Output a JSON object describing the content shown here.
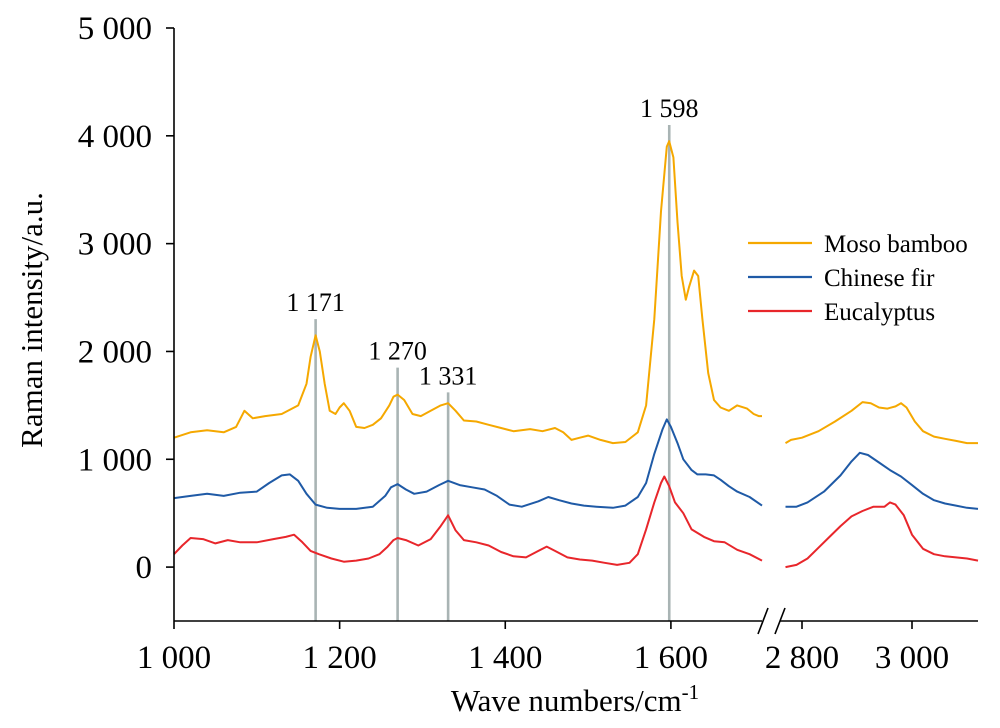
{
  "chart_data": {
    "type": "line",
    "xlabel": "Wave numbers/cm",
    "xlabel_sup": "-1",
    "ylabel": "Raman intensity/a.u.",
    "ylim": [
      -500,
      5000
    ],
    "yticks": [
      {
        "value": 0,
        "label": "0"
      },
      {
        "value": 1000,
        "label": "1 000"
      },
      {
        "value": 2000,
        "label": "2 000"
      },
      {
        "value": 3000,
        "label": "3 000"
      },
      {
        "value": 4000,
        "label": "4 000"
      },
      {
        "value": 5000,
        "label": "5 000"
      }
    ],
    "x_axis_broken": true,
    "x_segments": [
      {
        "range": [
          1000,
          1710
        ],
        "ticks": [
          {
            "value": 1000,
            "label": "1 000"
          },
          {
            "value": 1200,
            "label": "1 200"
          },
          {
            "value": 1400,
            "label": "1 400"
          },
          {
            "value": 1600,
            "label": "1 600"
          }
        ]
      },
      {
        "range": [
          2760,
          3120
        ],
        "ticks": [
          {
            "value": 2800,
            "label": "2 800"
          },
          {
            "value": 3000,
            "label": "3 000"
          }
        ]
      }
    ],
    "peak_markers": [
      {
        "x": 1171,
        "label": "1 171",
        "top": 2300
      },
      {
        "x": 1270,
        "label": "1 270",
        "top": 1850
      },
      {
        "x": 1331,
        "label": "1 331",
        "top": 1620
      },
      {
        "x": 1598,
        "label": "1 598",
        "top": 4100
      }
    ],
    "legend_position": "right",
    "series": [
      {
        "name": "Moso bamboo",
        "color": "#f5a800",
        "points": [
          [
            1000,
            1200
          ],
          [
            1020,
            1250
          ],
          [
            1040,
            1270
          ],
          [
            1060,
            1250
          ],
          [
            1075,
            1300
          ],
          [
            1085,
            1450
          ],
          [
            1095,
            1380
          ],
          [
            1110,
            1400
          ],
          [
            1130,
            1420
          ],
          [
            1150,
            1500
          ],
          [
            1160,
            1700
          ],
          [
            1165,
            1950
          ],
          [
            1171,
            2150
          ],
          [
            1176,
            2000
          ],
          [
            1182,
            1700
          ],
          [
            1188,
            1450
          ],
          [
            1195,
            1420
          ],
          [
            1200,
            1480
          ],
          [
            1205,
            1520
          ],
          [
            1212,
            1450
          ],
          [
            1220,
            1300
          ],
          [
            1230,
            1290
          ],
          [
            1240,
            1320
          ],
          [
            1250,
            1380
          ],
          [
            1260,
            1500
          ],
          [
            1265,
            1580
          ],
          [
            1270,
            1600
          ],
          [
            1278,
            1550
          ],
          [
            1288,
            1420
          ],
          [
            1298,
            1400
          ],
          [
            1310,
            1450
          ],
          [
            1322,
            1500
          ],
          [
            1331,
            1520
          ],
          [
            1340,
            1450
          ],
          [
            1350,
            1360
          ],
          [
            1365,
            1350
          ],
          [
            1380,
            1320
          ],
          [
            1395,
            1290
          ],
          [
            1410,
            1260
          ],
          [
            1430,
            1280
          ],
          [
            1445,
            1260
          ],
          [
            1460,
            1290
          ],
          [
            1470,
            1250
          ],
          [
            1480,
            1180
          ],
          [
            1490,
            1200
          ],
          [
            1500,
            1220
          ],
          [
            1515,
            1180
          ],
          [
            1530,
            1150
          ],
          [
            1545,
            1160
          ],
          [
            1560,
            1250
          ],
          [
            1570,
            1500
          ],
          [
            1580,
            2300
          ],
          [
            1588,
            3300
          ],
          [
            1595,
            3900
          ],
          [
            1598,
            3950
          ],
          [
            1603,
            3800
          ],
          [
            1608,
            3200
          ],
          [
            1613,
            2700
          ],
          [
            1618,
            2480
          ],
          [
            1622,
            2600
          ],
          [
            1628,
            2750
          ],
          [
            1633,
            2700
          ],
          [
            1638,
            2300
          ],
          [
            1645,
            1800
          ],
          [
            1652,
            1550
          ],
          [
            1660,
            1480
          ],
          [
            1670,
            1450
          ],
          [
            1680,
            1500
          ],
          [
            1692,
            1470
          ],
          [
            1700,
            1420
          ],
          [
            1706,
            1400
          ],
          [
            1710,
            1400
          ],
          null,
          [
            2770,
            1150
          ],
          [
            2780,
            1180
          ],
          [
            2800,
            1200
          ],
          [
            2830,
            1260
          ],
          [
            2860,
            1350
          ],
          [
            2890,
            1450
          ],
          [
            2910,
            1530
          ],
          [
            2925,
            1520
          ],
          [
            2940,
            1480
          ],
          [
            2955,
            1470
          ],
          [
            2970,
            1490
          ],
          [
            2980,
            1520
          ],
          [
            2990,
            1480
          ],
          [
            3005,
            1350
          ],
          [
            3020,
            1260
          ],
          [
            3040,
            1210
          ],
          [
            3060,
            1190
          ],
          [
            3080,
            1170
          ],
          [
            3100,
            1150
          ],
          [
            3120,
            1150
          ]
        ]
      },
      {
        "name": "Chinese fir",
        "color": "#1f5aa6",
        "points": [
          [
            1000,
            640
          ],
          [
            1020,
            660
          ],
          [
            1040,
            680
          ],
          [
            1060,
            660
          ],
          [
            1080,
            690
          ],
          [
            1100,
            700
          ],
          [
            1115,
            780
          ],
          [
            1130,
            850
          ],
          [
            1140,
            860
          ],
          [
            1150,
            800
          ],
          [
            1160,
            680
          ],
          [
            1171,
            580
          ],
          [
            1185,
            550
          ],
          [
            1200,
            540
          ],
          [
            1220,
            540
          ],
          [
            1240,
            560
          ],
          [
            1255,
            660
          ],
          [
            1262,
            740
          ],
          [
            1270,
            770
          ],
          [
            1280,
            720
          ],
          [
            1290,
            680
          ],
          [
            1305,
            700
          ],
          [
            1320,
            760
          ],
          [
            1331,
            800
          ],
          [
            1345,
            760
          ],
          [
            1360,
            740
          ],
          [
            1375,
            720
          ],
          [
            1390,
            660
          ],
          [
            1405,
            580
          ],
          [
            1420,
            560
          ],
          [
            1440,
            610
          ],
          [
            1452,
            650
          ],
          [
            1465,
            620
          ],
          [
            1480,
            590
          ],
          [
            1495,
            570
          ],
          [
            1510,
            560
          ],
          [
            1530,
            550
          ],
          [
            1545,
            570
          ],
          [
            1560,
            650
          ],
          [
            1570,
            780
          ],
          [
            1580,
            1050
          ],
          [
            1590,
            1280
          ],
          [
            1595,
            1370
          ],
          [
            1600,
            1300
          ],
          [
            1608,
            1150
          ],
          [
            1615,
            1000
          ],
          [
            1625,
            900
          ],
          [
            1632,
            860
          ],
          [
            1642,
            860
          ],
          [
            1652,
            850
          ],
          [
            1660,
            810
          ],
          [
            1670,
            750
          ],
          [
            1680,
            700
          ],
          [
            1695,
            650
          ],
          [
            1710,
            570
          ],
          null,
          [
            2770,
            560
          ],
          [
            2790,
            560
          ],
          [
            2810,
            600
          ],
          [
            2840,
            700
          ],
          [
            2870,
            850
          ],
          [
            2890,
            980
          ],
          [
            2905,
            1060
          ],
          [
            2920,
            1040
          ],
          [
            2940,
            970
          ],
          [
            2960,
            900
          ],
          [
            2980,
            840
          ],
          [
            3000,
            760
          ],
          [
            3020,
            680
          ],
          [
            3040,
            620
          ],
          [
            3060,
            590
          ],
          [
            3080,
            570
          ],
          [
            3100,
            550
          ],
          [
            3120,
            540
          ]
        ]
      },
      {
        "name": "Eucalyptus",
        "color": "#e8262b",
        "points": [
          [
            1000,
            120
          ],
          [
            1010,
            200
          ],
          [
            1020,
            270
          ],
          [
            1035,
            260
          ],
          [
            1050,
            220
          ],
          [
            1065,
            250
          ],
          [
            1080,
            230
          ],
          [
            1100,
            230
          ],
          [
            1120,
            260
          ],
          [
            1135,
            280
          ],
          [
            1145,
            300
          ],
          [
            1155,
            230
          ],
          [
            1165,
            150
          ],
          [
            1175,
            120
          ],
          [
            1190,
            80
          ],
          [
            1205,
            50
          ],
          [
            1220,
            60
          ],
          [
            1235,
            80
          ],
          [
            1248,
            120
          ],
          [
            1258,
            190
          ],
          [
            1265,
            250
          ],
          [
            1270,
            270
          ],
          [
            1280,
            250
          ],
          [
            1295,
            200
          ],
          [
            1310,
            260
          ],
          [
            1322,
            380
          ],
          [
            1331,
            480
          ],
          [
            1340,
            340
          ],
          [
            1350,
            250
          ],
          [
            1365,
            230
          ],
          [
            1380,
            200
          ],
          [
            1395,
            140
          ],
          [
            1410,
            100
          ],
          [
            1425,
            90
          ],
          [
            1440,
            150
          ],
          [
            1450,
            190
          ],
          [
            1460,
            150
          ],
          [
            1475,
            90
          ],
          [
            1490,
            70
          ],
          [
            1505,
            60
          ],
          [
            1520,
            40
          ],
          [
            1535,
            20
          ],
          [
            1550,
            40
          ],
          [
            1560,
            120
          ],
          [
            1570,
            350
          ],
          [
            1580,
            600
          ],
          [
            1588,
            780
          ],
          [
            1592,
            840
          ],
          [
            1598,
            750
          ],
          [
            1605,
            600
          ],
          [
            1615,
            500
          ],
          [
            1625,
            350
          ],
          [
            1640,
            280
          ],
          [
            1652,
            240
          ],
          [
            1665,
            230
          ],
          [
            1680,
            160
          ],
          [
            1695,
            120
          ],
          [
            1710,
            60
          ],
          null,
          [
            2770,
            0
          ],
          [
            2790,
            20
          ],
          [
            2810,
            80
          ],
          [
            2830,
            180
          ],
          [
            2850,
            280
          ],
          [
            2870,
            380
          ],
          [
            2890,
            470
          ],
          [
            2910,
            520
          ],
          [
            2930,
            560
          ],
          [
            2950,
            560
          ],
          [
            2960,
            600
          ],
          [
            2970,
            580
          ],
          [
            2985,
            480
          ],
          [
            3000,
            300
          ],
          [
            3020,
            170
          ],
          [
            3040,
            120
          ],
          [
            3060,
            100
          ],
          [
            3080,
            90
          ],
          [
            3100,
            80
          ],
          [
            3120,
            60
          ]
        ]
      }
    ]
  }
}
